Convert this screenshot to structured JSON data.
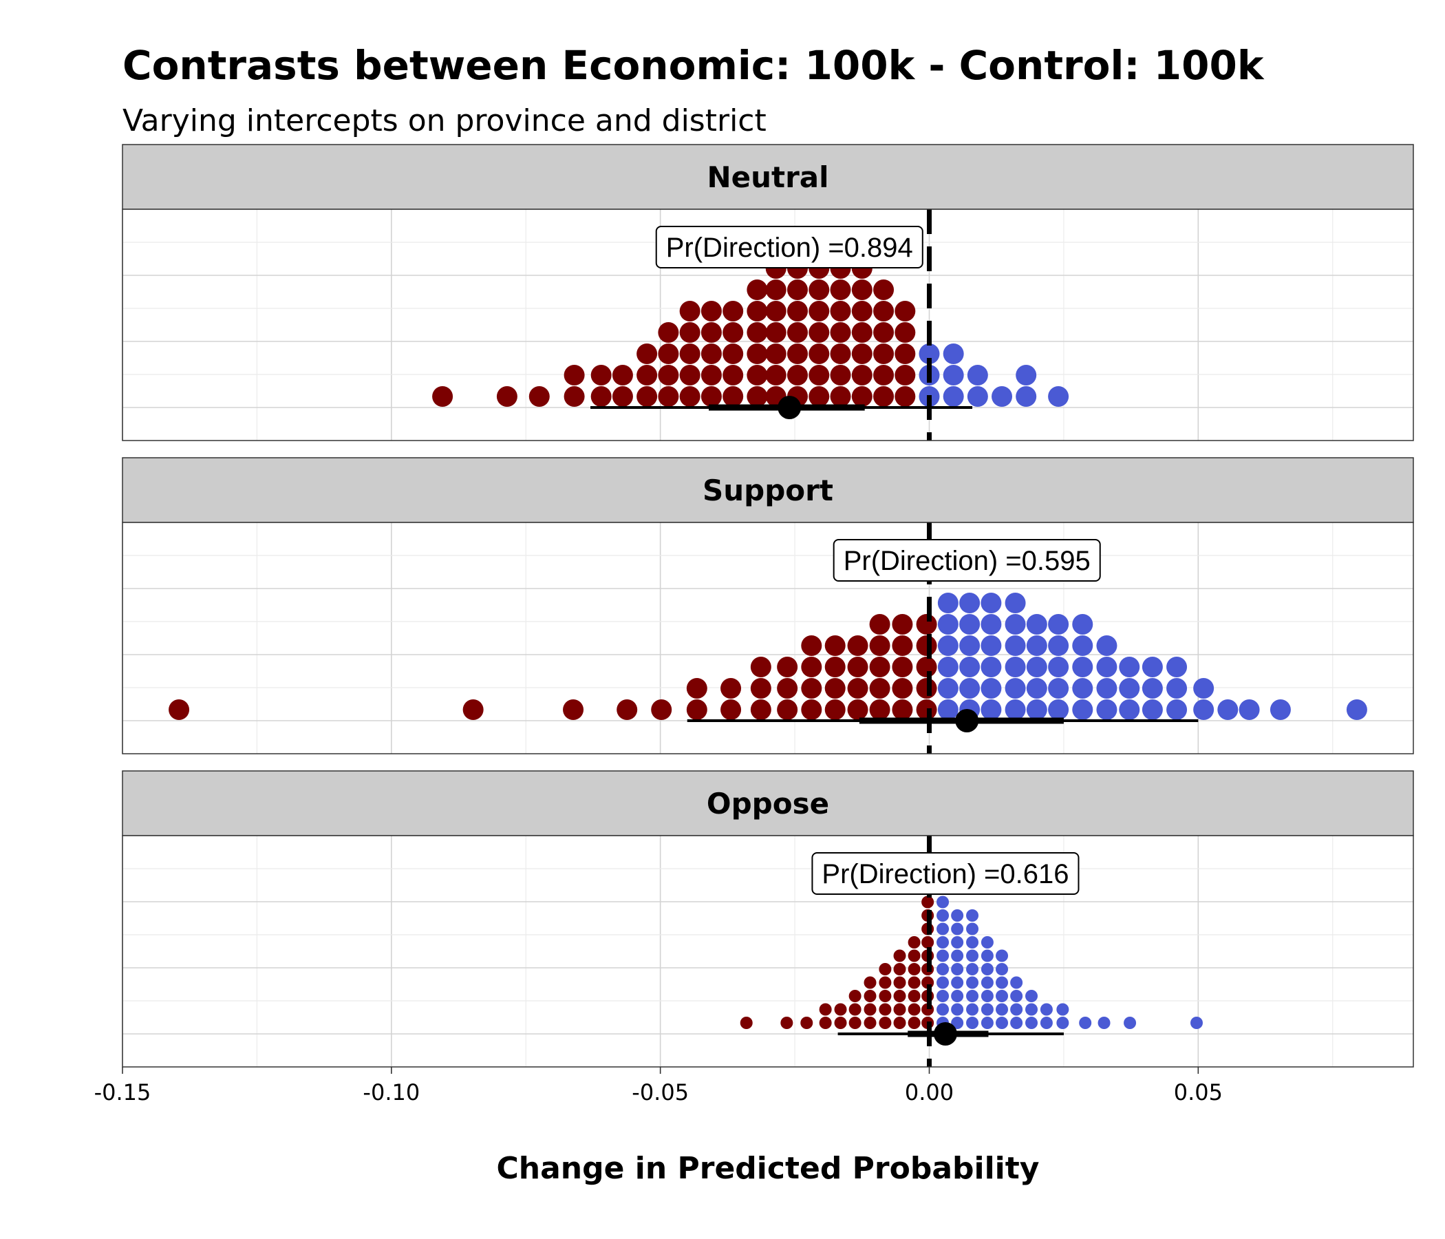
{
  "chart_data": {
    "type": "dotplot",
    "title": "Contrasts between Economic: 100k - Control: 100k",
    "subtitle": "Varying intercepts on province and district",
    "xlabel": "Change in Predicted Probability",
    "xlim": [
      -0.15,
      0.09
    ],
    "x_ticks": [
      -0.15,
      -0.1,
      -0.05,
      0.0,
      0.05
    ],
    "x_tick_labels": [
      "-0.15",
      "-0.10",
      "-0.05",
      "0.00",
      "0.05"
    ],
    "reference_line": 0.0,
    "grid": true,
    "colors": {
      "negative": "#7B0000",
      "positive": "#4A5AD4",
      "strip": "#CCCCCC",
      "interval": "#000000"
    },
    "panels": [
      {
        "label": "Neutral",
        "annotation": "Pr(Direction) =0.894",
        "annotation_x": -0.026,
        "point_estimate": -0.026,
        "interval_inner": [
          -0.041,
          -0.012
        ],
        "interval_outer": [
          -0.063,
          0.008
        ],
        "dot_size": "large",
        "dot_binwidth": 0.0042,
        "dot_columns": [
          {
            "x": -0.0905,
            "n": 1
          },
          {
            "x": -0.0785,
            "n": 1
          },
          {
            "x": -0.0725,
            "n": 1
          },
          {
            "x": -0.066,
            "n": 2
          },
          {
            "x": -0.061,
            "n": 2
          },
          {
            "x": -0.057,
            "n": 2
          },
          {
            "x": -0.0525,
            "n": 3
          },
          {
            "x": -0.0485,
            "n": 4
          },
          {
            "x": -0.0445,
            "n": 5
          },
          {
            "x": -0.0405,
            "n": 5
          },
          {
            "x": -0.0365,
            "n": 5
          },
          {
            "x": -0.032,
            "n": 6
          },
          {
            "x": -0.0285,
            "n": 7
          },
          {
            "x": -0.0245,
            "n": 7
          },
          {
            "x": -0.0205,
            "n": 7
          },
          {
            "x": -0.0165,
            "n": 7
          },
          {
            "x": -0.0125,
            "n": 7
          },
          {
            "x": -0.0085,
            "n": 6
          },
          {
            "x": -0.0045,
            "n": 5
          },
          {
            "x": 0.0,
            "n": 3
          },
          {
            "x": 0.0045,
            "n": 3
          },
          {
            "x": 0.009,
            "n": 2
          },
          {
            "x": 0.0135,
            "n": 1
          },
          {
            "x": 0.018,
            "n": 2
          },
          {
            "x": 0.024,
            "n": 1
          }
        ]
      },
      {
        "label": "Support",
        "annotation": "Pr(Direction) =0.595",
        "annotation_x": 0.007,
        "point_estimate": 0.007,
        "interval_inner": [
          -0.013,
          0.025
        ],
        "interval_outer": [
          -0.045,
          0.05
        ],
        "dot_size": "large",
        "dot_binwidth": 0.0042,
        "dot_columns": [
          {
            "x": -0.1395,
            "n": 1
          },
          {
            "x": -0.0848,
            "n": 1
          },
          {
            "x": -0.0662,
            "n": 1
          },
          {
            "x": -0.0562,
            "n": 1
          },
          {
            "x": -0.0498,
            "n": 1
          },
          {
            "x": -0.0432,
            "n": 2
          },
          {
            "x": -0.0369,
            "n": 2
          },
          {
            "x": -0.0313,
            "n": 3
          },
          {
            "x": -0.0264,
            "n": 3
          },
          {
            "x": -0.0219,
            "n": 4
          },
          {
            "x": -0.0175,
            "n": 4
          },
          {
            "x": -0.0133,
            "n": 4
          },
          {
            "x": -0.0092,
            "n": 5
          },
          {
            "x": -0.005,
            "n": 5
          },
          {
            "x": -0.0005,
            "n": 5
          },
          {
            "x": 0.0035,
            "n": 6
          },
          {
            "x": 0.0075,
            "n": 6
          },
          {
            "x": 0.0115,
            "n": 6
          },
          {
            "x": 0.016,
            "n": 6
          },
          {
            "x": 0.02,
            "n": 5
          },
          {
            "x": 0.024,
            "n": 5
          },
          {
            "x": 0.0285,
            "n": 5
          },
          {
            "x": 0.033,
            "n": 4
          },
          {
            "x": 0.0372,
            "n": 3
          },
          {
            "x": 0.0415,
            "n": 3
          },
          {
            "x": 0.046,
            "n": 3
          },
          {
            "x": 0.051,
            "n": 2
          },
          {
            "x": 0.0555,
            "n": 1
          },
          {
            "x": 0.0595,
            "n": 1
          },
          {
            "x": 0.0653,
            "n": 1
          },
          {
            "x": 0.0795,
            "n": 1
          }
        ]
      },
      {
        "label": "Oppose",
        "annotation": "Pr(Direction) =0.616",
        "annotation_x": 0.003,
        "point_estimate": 0.003,
        "interval_inner": [
          -0.004,
          0.011
        ],
        "interval_outer": [
          -0.017,
          0.025
        ],
        "dot_size": "small",
        "dot_binwidth": 0.0028,
        "dot_columns": [
          {
            "x": -0.034,
            "n": 1
          },
          {
            "x": -0.0265,
            "n": 1
          },
          {
            "x": -0.0228,
            "n": 1
          },
          {
            "x": -0.0193,
            "n": 2
          },
          {
            "x": -0.0165,
            "n": 2
          },
          {
            "x": -0.0138,
            "n": 3
          },
          {
            "x": -0.011,
            "n": 4
          },
          {
            "x": -0.0082,
            "n": 5
          },
          {
            "x": -0.0055,
            "n": 6
          },
          {
            "x": -0.0028,
            "n": 7
          },
          {
            "x": -0.0003,
            "n": 11
          },
          {
            "x": 0.0025,
            "n": 10
          },
          {
            "x": 0.0052,
            "n": 9
          },
          {
            "x": 0.008,
            "n": 9
          },
          {
            "x": 0.0108,
            "n": 7
          },
          {
            "x": 0.0135,
            "n": 6
          },
          {
            "x": 0.0162,
            "n": 4
          },
          {
            "x": 0.019,
            "n": 3
          },
          {
            "x": 0.0218,
            "n": 2
          },
          {
            "x": 0.0248,
            "n": 2
          },
          {
            "x": 0.029,
            "n": 1
          },
          {
            "x": 0.0325,
            "n": 1
          },
          {
            "x": 0.0373,
            "n": 1
          },
          {
            "x": 0.0497,
            "n": 1
          }
        ]
      }
    ]
  }
}
